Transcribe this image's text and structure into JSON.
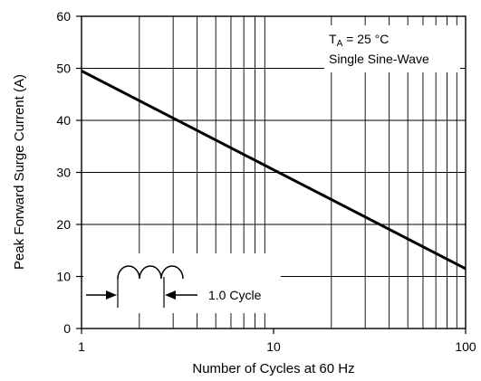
{
  "chart_data": {
    "type": "line",
    "title": "",
    "xlabel": "Number of Cycles at 60 Hz",
    "ylabel": "Peak Forward Surge Current (A)",
    "x_scale": "log",
    "xlim": [
      1,
      100
    ],
    "ylim": [
      0,
      60
    ],
    "x_tick_labels": [
      "1",
      "10",
      "100"
    ],
    "y_tick_labels": [
      "0",
      "10",
      "20",
      "30",
      "40",
      "50",
      "60"
    ],
    "y_ticks": [
      0,
      10,
      20,
      30,
      40,
      50,
      60
    ],
    "x_ticks": [
      1,
      10,
      100
    ],
    "grid": true,
    "series": [
      {
        "x": [
          1,
          100
        ],
        "y": [
          49.5,
          11.5
        ]
      }
    ],
    "annotations": {
      "condition_line1_main": "T",
      "condition_line1_sub": "A",
      "condition_line1_rest": " = 25 °C",
      "condition_line2": "Single Sine-Wave",
      "cycle_label": "1.0 Cycle"
    },
    "colors": {
      "line": "#000000",
      "grid": "#000000"
    }
  }
}
